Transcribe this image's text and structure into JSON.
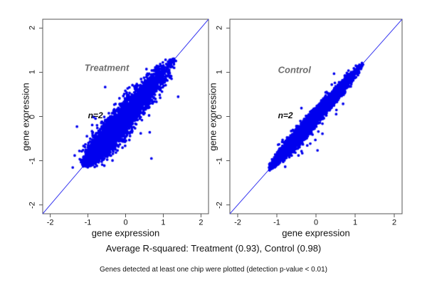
{
  "figure": {
    "background": "#ffffff",
    "captions": {
      "r_squared_summary": "Average R-squared: Treatment (0.93), Control (0.98)",
      "footnote": "Genes detected at least one chip were plotted (detection p-value < 0.01)"
    },
    "colors": {
      "points": "#0000ee",
      "identity_line": "#3c3cf0",
      "panel_label": "#6e6e6e",
      "annotation": "#111111",
      "axis": "#555555",
      "tick_text": "#111111"
    }
  },
  "chart_data": [
    {
      "type": "scatter",
      "panel": "treatment",
      "title": "Treatment",
      "annotation": "n=2",
      "r_squared_avg": 0.93,
      "xlabel": "gene expression",
      "ylabel": "gene expression",
      "xlim": [
        -2.2,
        2.2
      ],
      "ylim": [
        -2.2,
        2.2
      ],
      "xticks": [
        -2,
        -1,
        0,
        1,
        2
      ],
      "yticks": [
        -2,
        -1,
        0,
        1,
        2
      ],
      "identity_line": true,
      "label_pos": [
        -0.5,
        1.1
      ],
      "annotation_pos": [
        -0.8,
        0.02
      ],
      "point_cloud": {
        "n": 6500,
        "seed": 7,
        "mixture": [
          {
            "weight": 0.7,
            "mean": -0.55,
            "sd": 0.3
          },
          {
            "weight": 0.3,
            "mean": 0.35,
            "sd": 0.42
          }
        ],
        "range": [
          -1.06,
          1.27
        ],
        "noise_sd": 0.13,
        "outlier_fraction": 0.01,
        "outlier_scale": 2.8
      }
    },
    {
      "type": "scatter",
      "panel": "control",
      "title": "Control",
      "annotation": "n=2",
      "r_squared_avg": 0.98,
      "xlabel": "gene expression",
      "ylabel": "gene expression",
      "xlim": [
        -2.2,
        2.2
      ],
      "ylim": [
        -2.2,
        2.2
      ],
      "xticks": [
        -2,
        -1,
        0,
        1,
        2
      ],
      "yticks": [
        -2,
        -1,
        0,
        1,
        2
      ],
      "identity_line": true,
      "label_pos": [
        -0.55,
        1.05
      ],
      "annotation_pos": [
        -0.78,
        0.02
      ],
      "point_cloud": {
        "n": 6500,
        "seed": 11,
        "mixture": [
          {
            "weight": 0.7,
            "mean": -0.58,
            "sd": 0.28
          },
          {
            "weight": 0.3,
            "mean": 0.3,
            "sd": 0.42
          }
        ],
        "range": [
          -1.18,
          1.17
        ],
        "noise_sd": 0.065,
        "outlier_fraction": 0.012,
        "outlier_scale": 3.2
      }
    }
  ]
}
